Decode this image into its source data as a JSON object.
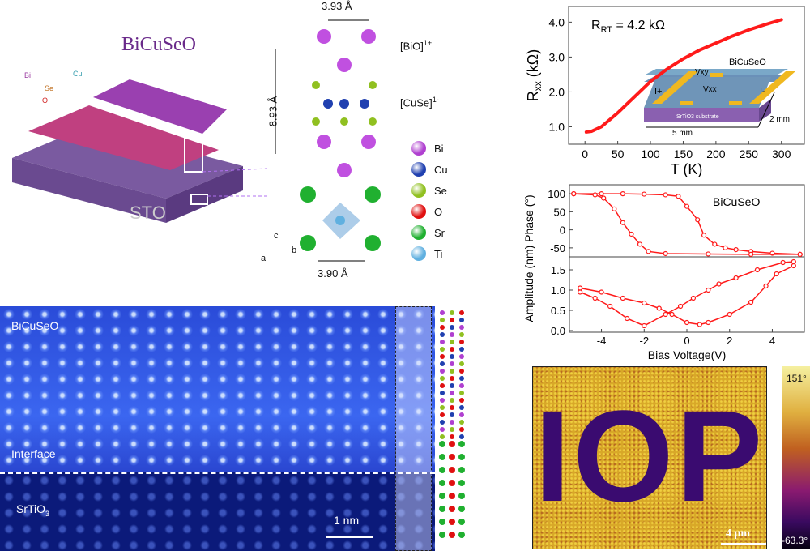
{
  "panel_a": {
    "title": "BiCuSeO",
    "substrate": "STO",
    "atoms_legend_small": [
      "Bi",
      "Cu",
      "Se",
      "O"
    ],
    "lattice_a": "3.93 Å",
    "lattice_c": "8.93 Å",
    "sto_a": "3.90 Å",
    "layer_top": "[BiO]",
    "layer_top_charge": "1+",
    "layer_mid": "[CuSe]",
    "layer_mid_charge": "1-",
    "axes": [
      "c",
      "a",
      "b"
    ],
    "legend": [
      {
        "label": "Bi",
        "color": "#b040d0"
      },
      {
        "label": "Cu",
        "color": "#2040b0"
      },
      {
        "label": "Se",
        "color": "#90c020"
      },
      {
        "label": "O",
        "color": "#e01010"
      },
      {
        "label": "Sr",
        "color": "#20b030"
      },
      {
        "label": "Ti",
        "color": "#60b0e0"
      }
    ]
  },
  "panel_stem": {
    "label_top": "BiCuSeO",
    "label_interface": "Interface",
    "label_bottom": "SrTiO",
    "label_bottom_sub": "3",
    "scalebar": "1 nm"
  },
  "panel_pfm": {
    "scalebar": "4 μm",
    "colorbar_max": "151°",
    "colorbar_min": "-63.3°",
    "pattern_text": "IOP"
  },
  "chart_data": [
    {
      "type": "line",
      "title": "",
      "annotation": "R",
      "annotation_sub": "RT",
      "annotation_value": " = 4.2 kΩ",
      "xlabel": "T (K)",
      "ylabel": "R",
      "ylabel_sub": "xx",
      "ylabel_unit": " (kΩ)",
      "xlim": [
        -25,
        335
      ],
      "ylim": [
        0.5,
        4.45
      ],
      "xticks": [
        0,
        50,
        100,
        150,
        200,
        250,
        300
      ],
      "yticks": [
        1.0,
        2.0,
        3.0,
        4.0
      ],
      "color": "#ff1a1a",
      "x": [
        2,
        10,
        25,
        50,
        75,
        100,
        125,
        150,
        175,
        200,
        225,
        250,
        275,
        300
      ],
      "y": [
        0.85,
        0.87,
        1.0,
        1.4,
        1.85,
        2.3,
        2.65,
        2.95,
        3.2,
        3.4,
        3.6,
        3.78,
        3.93,
        4.07
      ],
      "inset": {
        "film": "BiCuSeO",
        "substrate": "SrTiO3 substrate",
        "length": "5 mm",
        "width": "2 mm",
        "i_plus": "I+",
        "i_minus": "I-",
        "vxy": "Vxy",
        "vxx": "Vxx"
      }
    },
    {
      "type": "line",
      "xlabel": "Bias Voltage(V)",
      "xlim": [
        -5.5,
        5.5
      ],
      "xticks": [
        -4,
        -2,
        0,
        2,
        4
      ],
      "color": "#ff1a1a",
      "legend": "BiCuSeO",
      "phase": {
        "ylabel": "Phase (°)",
        "ylim": [
          -75,
          125
        ],
        "yticks": [
          -50,
          0,
          50,
          100
        ],
        "forward": {
          "x": [
            -5.3,
            -4,
            -3,
            -2,
            -1,
            -0.4,
            0,
            0.5,
            0.8,
            1.3,
            1.8,
            2.3,
            3,
            4,
            5.3
          ],
          "y": [
            100,
            100,
            100,
            99,
            97,
            93,
            65,
            28,
            -15,
            -40,
            -50,
            -55,
            -60,
            -65,
            -68
          ]
        },
        "reverse": {
          "x": [
            5.3,
            3,
            1,
            -1,
            -1.8,
            -2.2,
            -2.6,
            -3,
            -3.4,
            -3.9,
            -4.3,
            -5.3
          ],
          "y": [
            -68,
            -68,
            -67,
            -66,
            -60,
            -40,
            -12,
            20,
            58,
            88,
            97,
            100
          ]
        }
      },
      "amplitude": {
        "ylabel": "Amplitude (nm)",
        "ylim": [
          -0.04,
          1.82
        ],
        "yticks": [
          0.0,
          0.5,
          1.0,
          1.5
        ],
        "forward": {
          "x": [
            -5,
            -4,
            -3,
            -2,
            -1.3,
            -0.7,
            0,
            0.6,
            1,
            2,
            3,
            3.7,
            4.2,
            5
          ],
          "y": [
            1.05,
            0.95,
            0.8,
            0.68,
            0.55,
            0.4,
            0.2,
            0.15,
            0.2,
            0.4,
            0.7,
            1.1,
            1.4,
            1.6
          ]
        },
        "reverse": {
          "x": [
            5,
            4.5,
            3.3,
            2.3,
            1.5,
            1,
            0.3,
            -0.3,
            -1,
            -2,
            -2.8,
            -3.6,
            -4.3,
            -5
          ],
          "y": [
            1.7,
            1.68,
            1.5,
            1.3,
            1.15,
            1.0,
            0.8,
            0.6,
            0.4,
            0.12,
            0.3,
            0.6,
            0.8,
            0.95
          ]
        }
      }
    }
  ]
}
